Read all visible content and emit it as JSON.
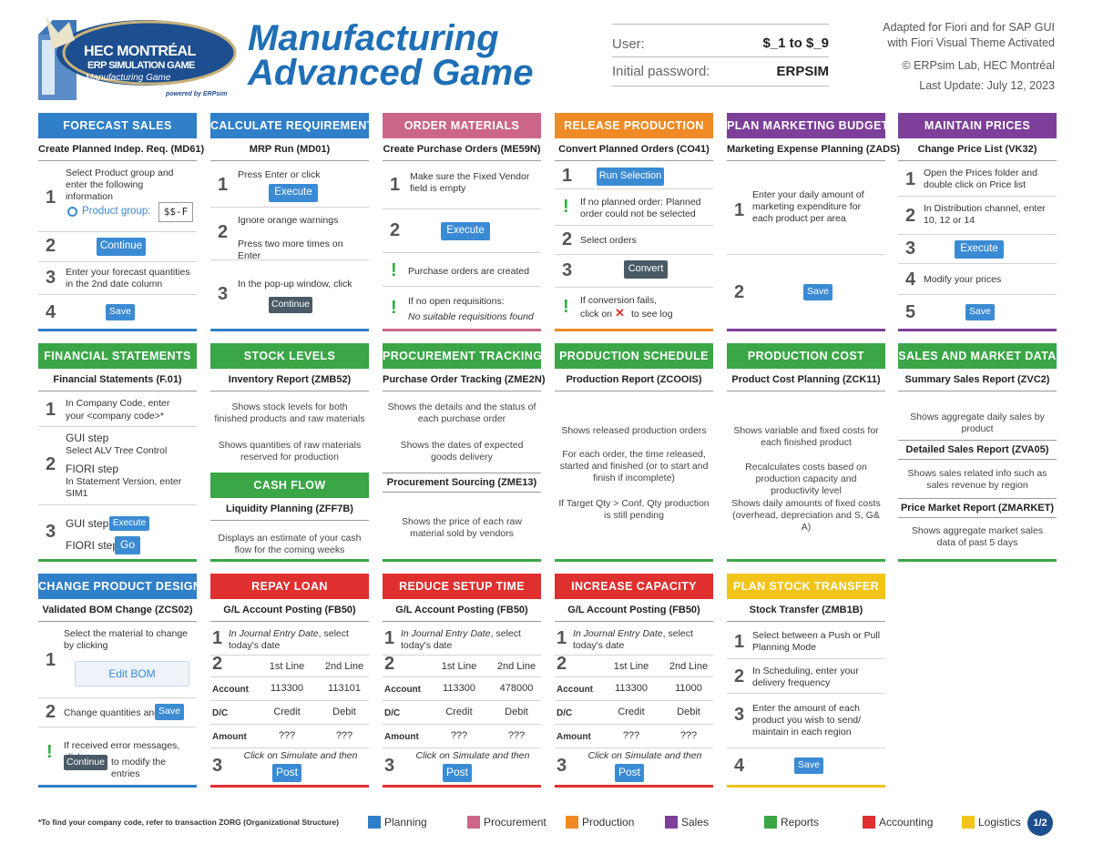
{
  "header": {
    "logo_line1": "HEC MONTRÉAL",
    "logo_line2": "ERP SIMULATION GAME",
    "logo_line3": "Manufacturing Game",
    "logo_line4": "powered by ERPsim",
    "title_line1": "Manufacturing",
    "title_line2": "Advanced Game",
    "user_label": "User:",
    "user_value": "$_1 to $_9",
    "password_label": "Initial password:",
    "password_value": "ERPSIM",
    "adapted1": "Adapted for Fiori and for SAP GUI",
    "adapted2": "with Fiori Visual Theme Activated",
    "copyright": "© ERPsim Lab, HEC Montréal",
    "last_update": "Last Update: July 12, 2023"
  },
  "colors": {
    "planning": "#2f7fc9",
    "procurement": "#cc6688",
    "production": "#f08a24",
    "sales": "#7d3f9a",
    "reports": "#3aa646",
    "accounting": "#e02f2f",
    "logistics": "#f2c318"
  },
  "forecast": {
    "title": "FORECAST SALES",
    "tx": "Create Planned Indep. Req. (MD61)",
    "s1": "Select Product group and enter the following information",
    "product_group": "Product group:",
    "pg_value": "$$-F",
    "continue": "Continue",
    "s3": "Enter your forecast quantities in the 2nd date column",
    "save": "Save",
    "n1": "1",
    "n2": "2",
    "n3": "3",
    "n4": "4"
  },
  "calc": {
    "title": "CALCULATE REQUIREMENTS",
    "tx": "MRP Run (MD01)",
    "s1": "Press Enter or click",
    "execute": "Execute",
    "s2a": "Ignore orange warnings",
    "s2b": "Press two more times on Enter",
    "s3": "In the pop-up window, click",
    "continue": "Continue",
    "n1": "1",
    "n2": "2",
    "n3": "3"
  },
  "order": {
    "title": "ORDER MATERIALS",
    "tx": "Create Purchase Orders (ME59N)",
    "s1": "Make sure the Fixed Vendor field is empty",
    "execute": "Execute",
    "i1": "Purchase orders are created",
    "i2a": "If no open requisitions:",
    "i2b": "No suitable requisitions found",
    "n1": "1",
    "n2": "2",
    "bang": "!"
  },
  "release": {
    "title": "RELEASE PRODUCTION",
    "tx": "Convert Planned Orders (CO41)",
    "run": "Run Selection",
    "i1": "If no planned order: Planned order could not be selected",
    "s2": "Select orders",
    "convert": "Convert",
    "i2a": "If conversion fails,",
    "i2b": "click on",
    "i2c": "to see log",
    "n1": "1",
    "n2": "2",
    "n3": "3",
    "bang": "!",
    "x": "✕"
  },
  "budget": {
    "title": "PLAN MARKETING BUDGET",
    "tx": "Marketing Expense Planning (ZADS)",
    "s1": "Enter your daily amount of marketing expenditure for each product per area",
    "save": "Save",
    "n1": "1",
    "n2": "2"
  },
  "prices": {
    "title": "MAINTAIN PRICES",
    "tx": "Change Price List (VK32)",
    "s1": "Open the Prices folder and double click on Price list",
    "s2": "In Distribution channel, enter 10, 12 or 14",
    "execute": "Execute",
    "s4": "Modify your prices",
    "save": "Save",
    "n1": "1",
    "n2": "2",
    "n3": "3",
    "n4": "4",
    "n5": "5"
  },
  "fin": {
    "title": "FINANCIAL STATEMENTS",
    "tx": "Financial Statements (F.01)",
    "s1a": "In Company Code, enter",
    "s1b": "your <company code>*",
    "gui": "GUI step",
    "gui_sub": "Select ALV Tree Control",
    "fiori": "FIORI step",
    "fiori_sub": "In Statement Version, enter SIM1",
    "gui3": "GUI step",
    "execute": "Execute",
    "fiori3": "FIORI step",
    "go": "Go",
    "n1": "1",
    "n2": "2",
    "n3": "3"
  },
  "stock": {
    "title": "STOCK LEVELS",
    "tx": "Inventory Report (ZMB52)",
    "d1": "Shows stock levels for both finished products and raw materials",
    "d2": "Shows quantities of raw materials reserved for production"
  },
  "cash": {
    "title": "CASH FLOW",
    "tx": "Liquidity Planning (ZFF7B)",
    "d1": "Displays an estimate of your cash flow for the coming weeks"
  },
  "proc": {
    "title": "PROCUREMENT TRACKING",
    "tx": "Purchase Order Tracking (ZME2N)",
    "d1": "Shows the details and the status of each purchase order",
    "d2": "Shows the dates of expected goods delivery",
    "tx2": "Procurement Sourcing (ZME13)",
    "d3": "Shows the price of each raw material sold by vendors"
  },
  "sched": {
    "title": "PRODUCTION SCHEDULE",
    "tx": "Production Report (ZCOOIS)",
    "d1": "Shows released production orders",
    "d2": "For each order, the time released, started and finished (or to start and finish if incomplete)",
    "d3": "If Target Qty > Conf. Qty production is still pending"
  },
  "cost": {
    "title": "PRODUCTION COST",
    "tx": "Product Cost Planning (ZCK11)",
    "d1": "Shows variable and fixed costs for each finished product",
    "d2": "Recalculates costs based on production capacity and productivity level",
    "d3": "Shows daily amounts of fixed costs (overhead, depreciation and S, G& A)"
  },
  "salesdata": {
    "title": "SALES AND MARKET DATA",
    "tx": "Summary Sales Report (ZVC2)",
    "d1": "Shows aggregate daily sales by product",
    "tx2": "Detailed Sales Report (ZVA05)",
    "d2": "Shows sales related info such as sales revenue by region",
    "tx3": "Price Market Report (ZMARKET)",
    "d3": "Shows aggregate market sales data of past 5 days"
  },
  "design": {
    "title": "CHANGE PRODUCT DESIGN",
    "tx": "Validated BOM Change (ZCS02)",
    "s1": "Select the material to change by clicking",
    "edit": "Edit BOM",
    "s2": "Change quantities and",
    "save": "Save",
    "i1a": "If received error messages, click on",
    "continue": "Continue",
    "i1b": "to modify the entries",
    "n1": "1",
    "n2": "2",
    "bang": "!"
  },
  "gl": {
    "tx": "G/L Account Posting (FB50)",
    "s1a": "In Journal Entry Date",
    "s1b": ", select today's date",
    "line1": "1st Line",
    "line2": "2nd Line",
    "account": "Account",
    "dc": "D/C",
    "amount": "Amount",
    "credit": "Credit",
    "debit": "Debit",
    "q": "???",
    "s3": "Click on Simulate and then",
    "post": "Post",
    "n1": "1",
    "n2": "2",
    "n3": "3"
  },
  "repay": {
    "title": "REPAY LOAN",
    "acc1": "113300",
    "acc2": "113101"
  },
  "setup": {
    "title": "REDUCE SETUP TIME",
    "acc1": "113300",
    "acc2": "478000"
  },
  "capacity": {
    "title": "INCREASE CAPACITY",
    "acc1": "113300",
    "acc2": "11000"
  },
  "transfer": {
    "title": "PLAN STOCK TRANSFER",
    "tx": "Stock Transfer (ZMB1B)",
    "s1": "Select between a Push or Pull Planning Mode",
    "s2": "In Scheduling, enter your delivery frequency",
    "s3": "Enter the amount of each product you wish to send/ maintain in each region",
    "save": "Save",
    "n1": "1",
    "n2": "2",
    "n3": "3",
    "n4": "4"
  },
  "footer": {
    "note": "*To find your company code, refer to transaction ZORG (Organizational Structure)",
    "planning": "Planning",
    "procurement": "Procurement",
    "production": "Production",
    "sales": "Sales",
    "reports": "Reports",
    "accounting": "Accounting",
    "logistics": "Logistics",
    "page": "1/2"
  }
}
